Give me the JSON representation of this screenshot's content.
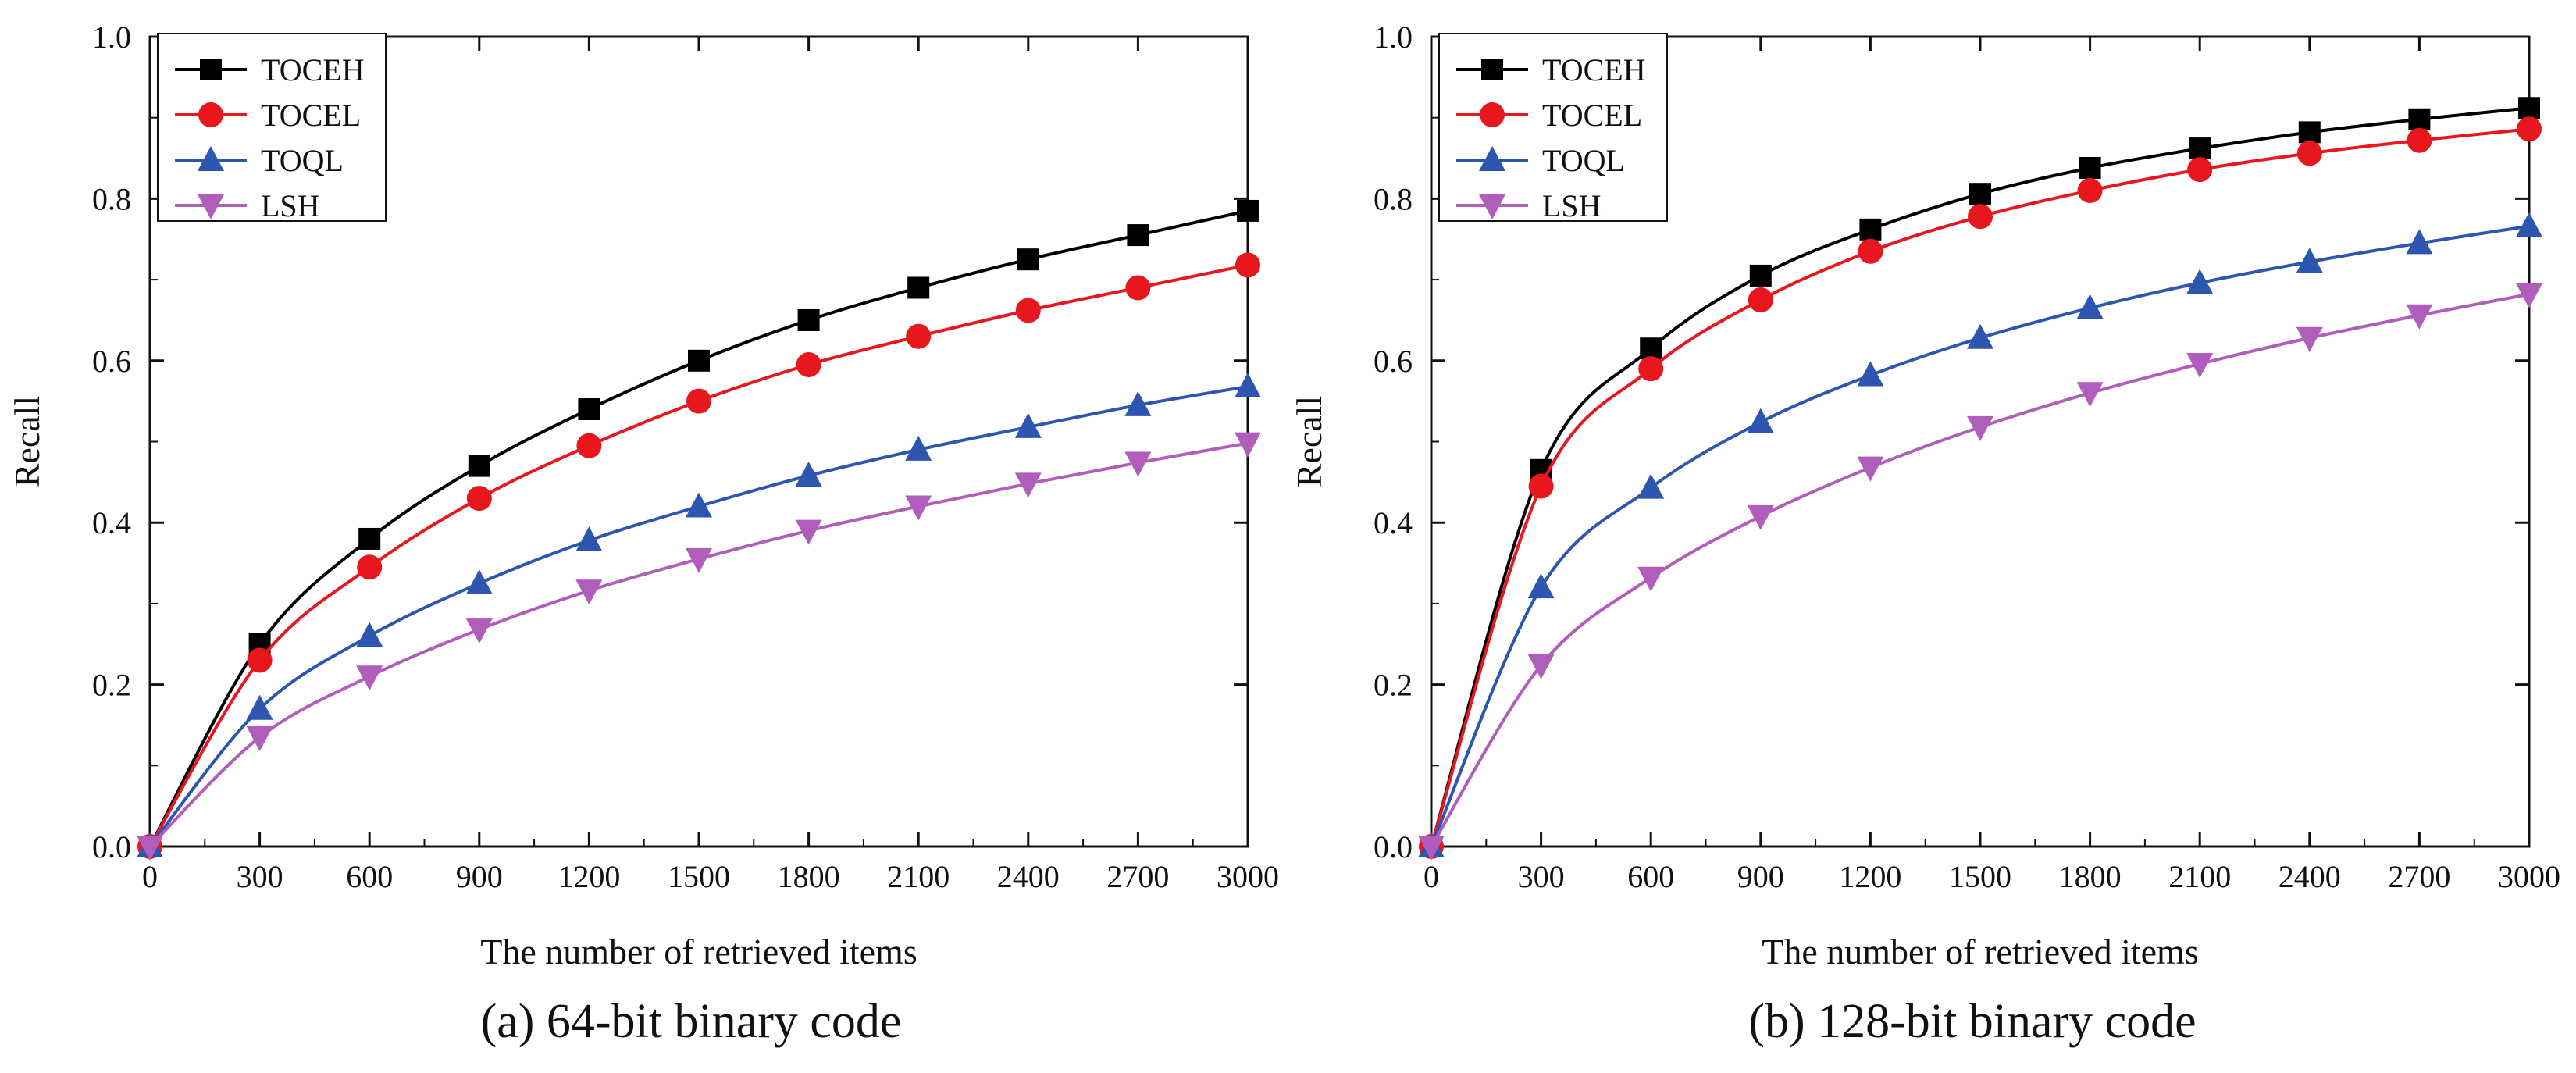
{
  "figure": {
    "panels": [
      {
        "caption": "(a) 64-bit binary code"
      },
      {
        "caption": "(b) 128-bit binary code"
      }
    ]
  },
  "chart_data": [
    {
      "type": "line",
      "caption": "(a) 64-bit binary code",
      "title": "",
      "xlabel": "The number of retrieved items",
      "ylabel": "Recall",
      "xlim": [
        0,
        3000
      ],
      "ylim": [
        0,
        1.0
      ],
      "x_ticks": [
        "0",
        "300",
        "600",
        "900",
        "1200",
        "1500",
        "1800",
        "2100",
        "2400",
        "2700",
        "3000"
      ],
      "y_ticks": [
        "0.0",
        "0.2",
        "0.4",
        "0.6",
        "0.8",
        "1.0"
      ],
      "grid": false,
      "legend_position": "top-left",
      "x": [
        0,
        300,
        600,
        900,
        1200,
        1500,
        1800,
        2100,
        2400,
        2700,
        3000
      ],
      "series": [
        {
          "name": "TOCEH",
          "marker": "square",
          "color": "#000000",
          "values": [
            0.0,
            0.25,
            0.38,
            0.47,
            0.54,
            0.6,
            0.65,
            0.69,
            0.725,
            0.755,
            0.785
          ]
        },
        {
          "name": "TOCEL",
          "marker": "circle",
          "color": "#e8171d",
          "values": [
            0.0,
            0.23,
            0.345,
            0.43,
            0.495,
            0.55,
            0.595,
            0.63,
            0.662,
            0.69,
            0.718
          ]
        },
        {
          "name": "TOQL",
          "marker": "triangle-up",
          "color": "#2c56b0",
          "values": [
            0.0,
            0.17,
            0.26,
            0.325,
            0.378,
            0.42,
            0.458,
            0.49,
            0.518,
            0.545,
            0.568
          ]
        },
        {
          "name": "LSH",
          "marker": "triangle-down",
          "color": "#b15dbb",
          "values": [
            0.0,
            0.135,
            0.21,
            0.268,
            0.316,
            0.355,
            0.39,
            0.42,
            0.448,
            0.474,
            0.498
          ]
        }
      ]
    },
    {
      "type": "line",
      "caption": "(b) 128-bit binary code",
      "title": "",
      "xlabel": "The number of retrieved items",
      "ylabel": "Recall",
      "xlim": [
        0,
        3000
      ],
      "ylim": [
        0,
        1.0
      ],
      "x_ticks": [
        "0",
        "300",
        "600",
        "900",
        "1200",
        "1500",
        "1800",
        "2100",
        "2400",
        "2700",
        "3000"
      ],
      "y_ticks": [
        "0.0",
        "0.2",
        "0.4",
        "0.6",
        "0.8",
        "1.0"
      ],
      "grid": false,
      "legend_position": "top-left",
      "x": [
        0,
        300,
        600,
        900,
        1200,
        1500,
        1800,
        2100,
        2400,
        2700,
        3000
      ],
      "series": [
        {
          "name": "TOCEH",
          "marker": "square",
          "color": "#000000",
          "values": [
            0.0,
            0.465,
            0.615,
            0.705,
            0.762,
            0.806,
            0.838,
            0.862,
            0.882,
            0.898,
            0.912
          ]
        },
        {
          "name": "TOCEL",
          "marker": "circle",
          "color": "#e8171d",
          "values": [
            0.0,
            0.445,
            0.59,
            0.675,
            0.735,
            0.778,
            0.81,
            0.836,
            0.856,
            0.872,
            0.886
          ]
        },
        {
          "name": "TOQL",
          "marker": "triangle-up",
          "color": "#2c56b0",
          "values": [
            0.0,
            0.32,
            0.443,
            0.524,
            0.582,
            0.628,
            0.665,
            0.696,
            0.722,
            0.745,
            0.766
          ]
        },
        {
          "name": "LSH",
          "marker": "triangle-down",
          "color": "#b15dbb",
          "values": [
            0.0,
            0.224,
            0.332,
            0.408,
            0.468,
            0.518,
            0.56,
            0.596,
            0.628,
            0.656,
            0.682
          ]
        }
      ]
    }
  ]
}
